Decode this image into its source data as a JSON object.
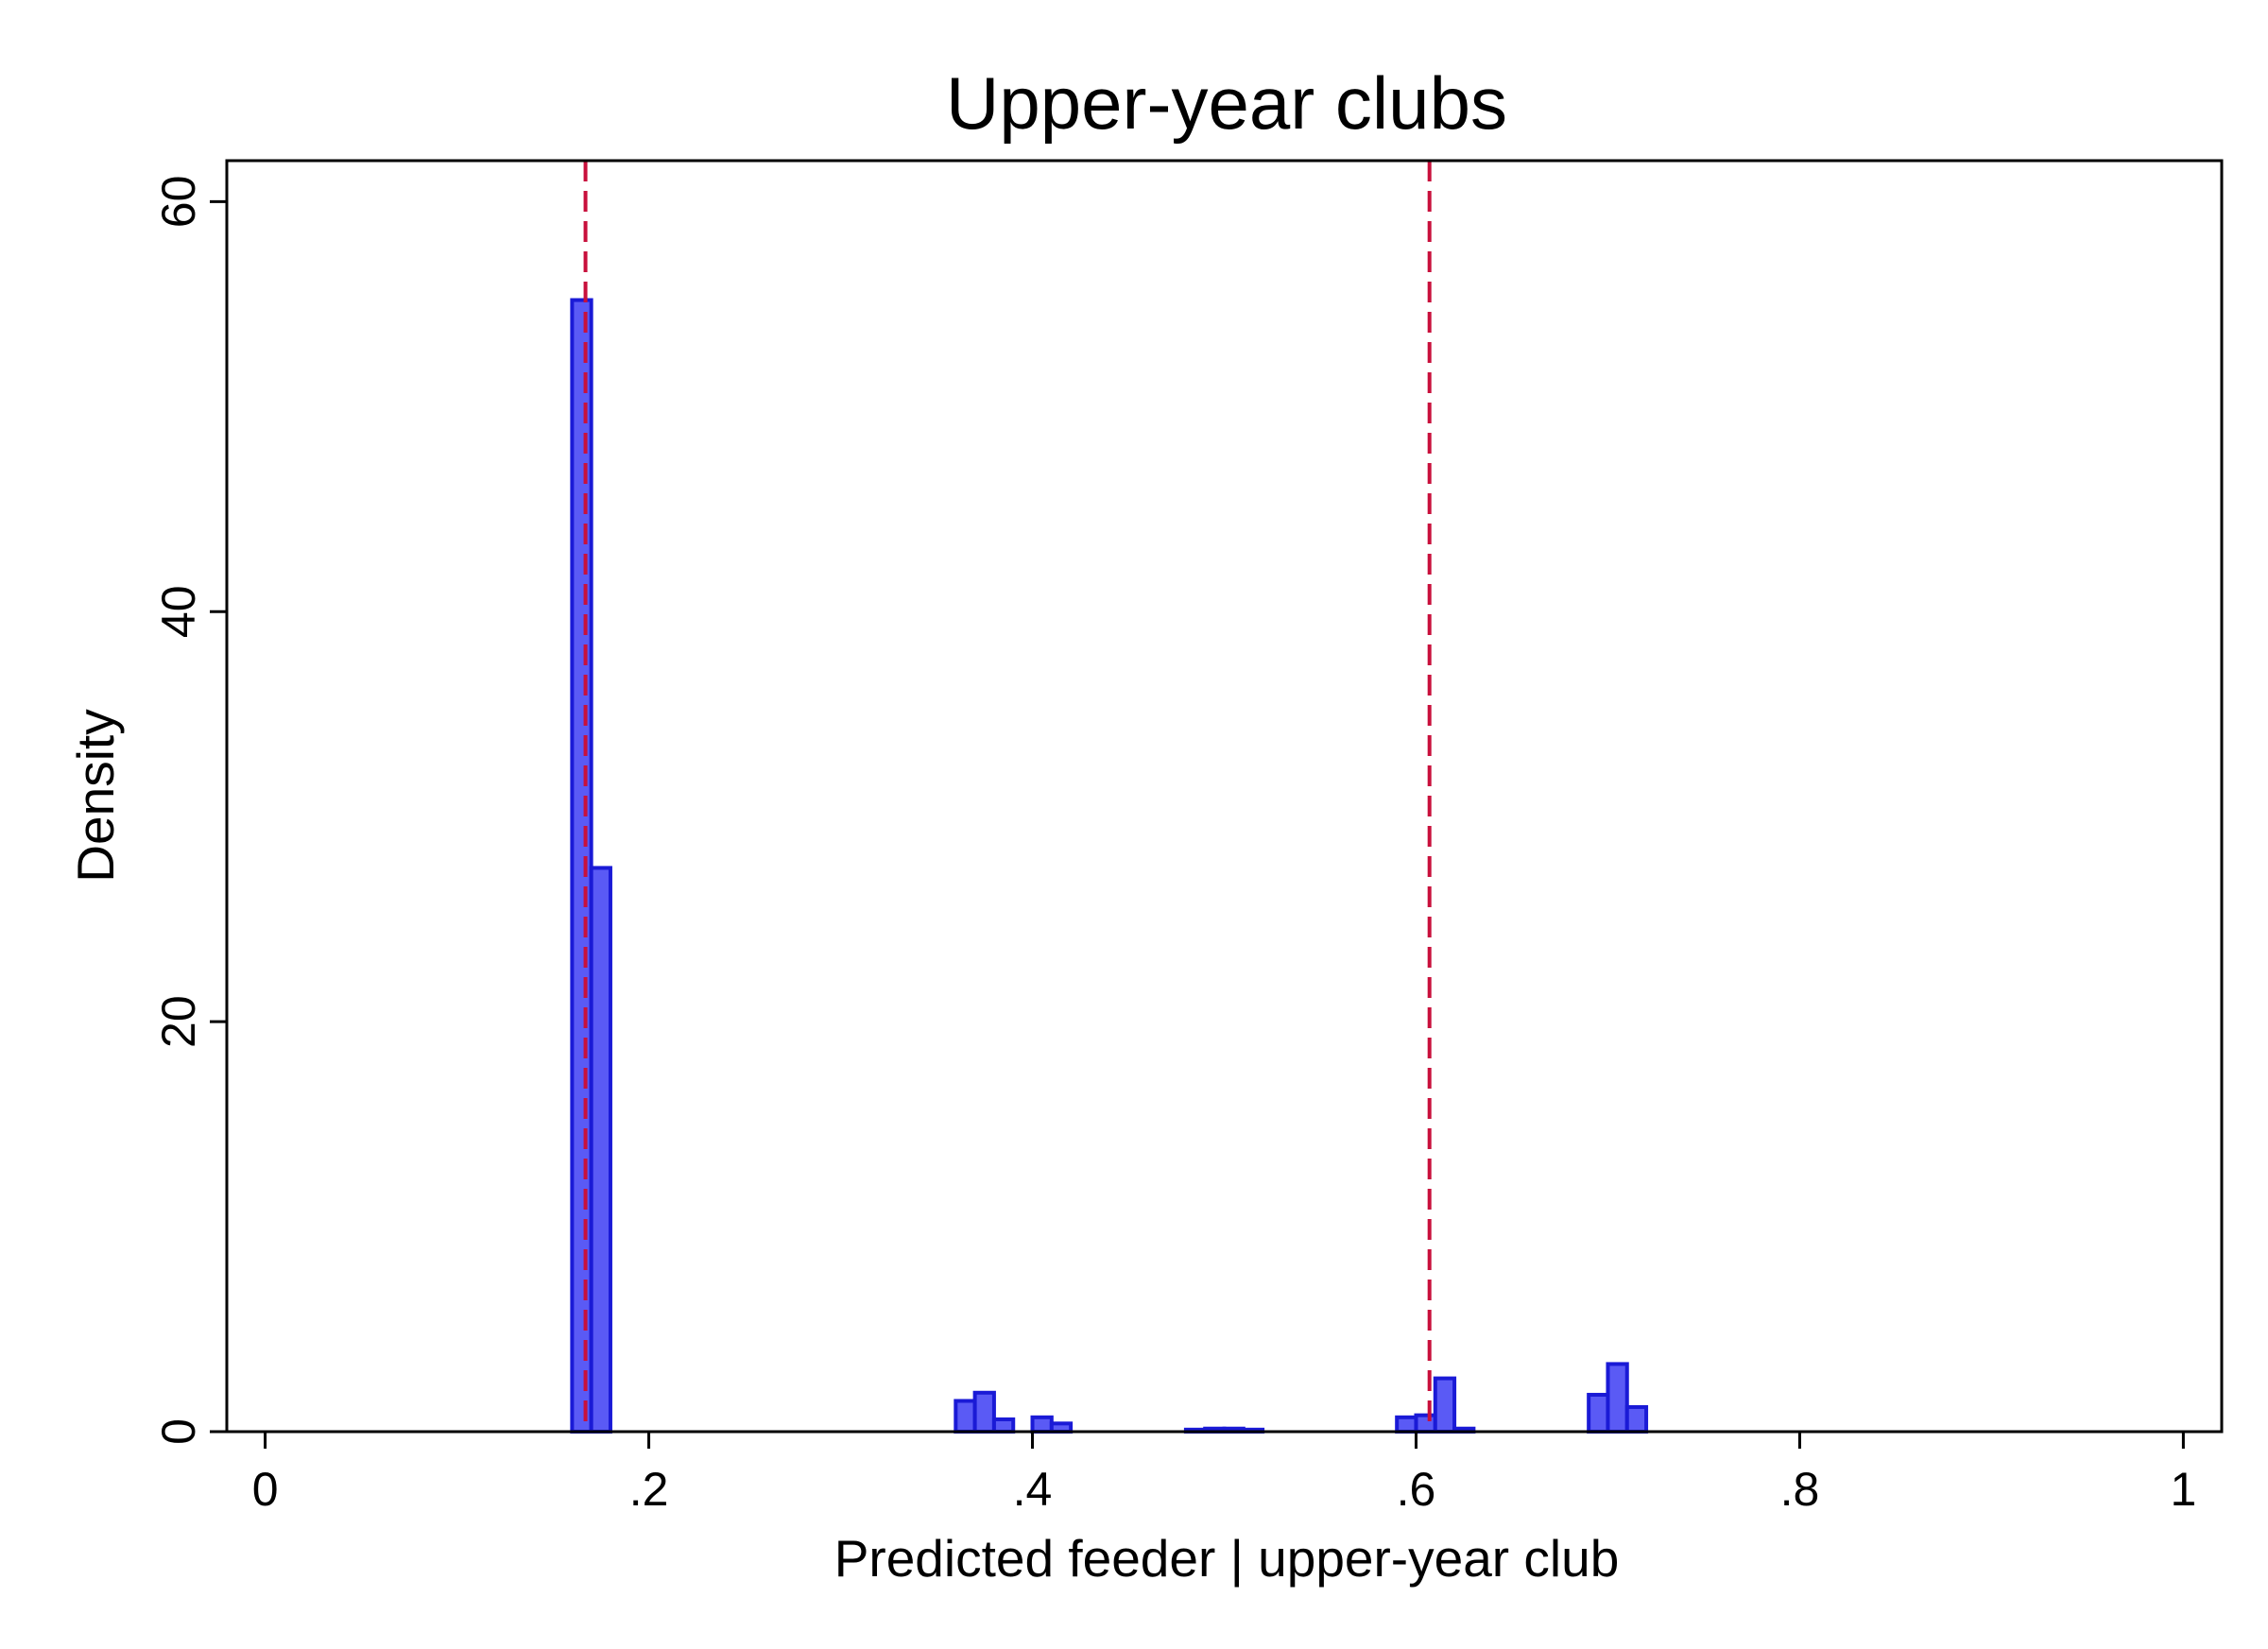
{
  "chart_data": {
    "type": "bar",
    "title": "Upper-year clubs",
    "xlabel": "Predicted feeder | upper-year club",
    "ylabel": "Density",
    "xlim": [
      -0.02,
      1.02
    ],
    "ylim": [
      0,
      62
    ],
    "x_ticks": [
      {
        "value": 0,
        "label": "0"
      },
      {
        "value": 0.2,
        "label": ".2"
      },
      {
        "value": 0.4,
        "label": ".4"
      },
      {
        "value": 0.6,
        "label": ".6"
      },
      {
        "value": 0.8,
        "label": ".8"
      },
      {
        "value": 1,
        "label": "1"
      }
    ],
    "y_ticks": [
      {
        "value": 0,
        "label": "0"
      },
      {
        "value": 20,
        "label": "20"
      },
      {
        "value": 40,
        "label": "40"
      },
      {
        "value": 60,
        "label": "60"
      }
    ],
    "bin_width": 0.01,
    "bins": [
      {
        "x0": 0.16,
        "density": 55.2
      },
      {
        "x0": 0.17,
        "density": 27.5
      },
      {
        "x0": 0.36,
        "density": 1.5
      },
      {
        "x0": 0.37,
        "density": 1.9
      },
      {
        "x0": 0.38,
        "density": 0.6
      },
      {
        "x0": 0.4,
        "density": 0.7
      },
      {
        "x0": 0.41,
        "density": 0.4
      },
      {
        "x0": 0.48,
        "density": 0.1
      },
      {
        "x0": 0.49,
        "density": 0.15
      },
      {
        "x0": 0.5,
        "density": 0.15
      },
      {
        "x0": 0.51,
        "density": 0.1
      },
      {
        "x0": 0.59,
        "density": 0.7
      },
      {
        "x0": 0.6,
        "density": 0.8
      },
      {
        "x0": 0.61,
        "density": 2.6
      },
      {
        "x0": 0.62,
        "density": 0.15
      },
      {
        "x0": 0.69,
        "density": 1.8
      },
      {
        "x0": 0.7,
        "density": 3.3
      },
      {
        "x0": 0.71,
        "density": 1.2
      }
    ],
    "reference_lines": [
      {
        "x": 0.167
      },
      {
        "x": 0.607
      }
    ],
    "colors": {
      "bar_fill": "#5a5af5",
      "bar_edge": "#1a1ad6",
      "reference_line": "#c8103c",
      "axis": "#000000",
      "background": "#ffffff"
    },
    "grid": false,
    "legend": false
  }
}
